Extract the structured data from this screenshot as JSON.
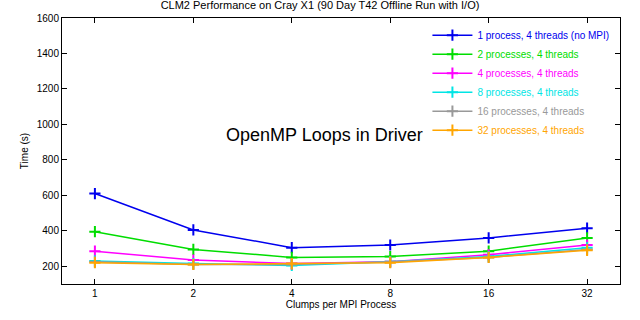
{
  "chart_data": {
    "type": "line",
    "title": "CLM2 Performance on Cray X1 (90 Day T42 Offline Run with I/O)",
    "x_label": "Clumps per MPI Process",
    "y_label": "Time (s)",
    "annotation": "OpenMP Loops in Driver",
    "categories": [
      "1",
      "2",
      "4",
      "8",
      "16",
      "32"
    ],
    "series": [
      {
        "name": "1 process, 4 threads (no MPI)",
        "color": "#0000ee",
        "values": [
          610,
          405,
          305,
          320,
          360,
          415
        ]
      },
      {
        "name": "2 processes, 4 threads",
        "color": "#00dd00",
        "values": [
          395,
          295,
          250,
          255,
          285,
          360
        ]
      },
      {
        "name": "4 processes, 4 threads",
        "color": "#ff00ff",
        "values": [
          285,
          235,
          215,
          225,
          265,
          320
        ]
      },
      {
        "name": "8 processes, 4 threads",
        "color": "#00e5e5",
        "values": [
          230,
          215,
          205,
          225,
          255,
          305
        ]
      },
      {
        "name": "16 processes, 4 threads",
        "color": "#999999",
        "values": [
          225,
          210,
          210,
          225,
          250,
          295
        ]
      },
      {
        "name": "32 processes, 4 threads",
        "color": "#ffa500",
        "values": [
          220,
          210,
          215,
          220,
          250,
          290
        ]
      }
    ],
    "ylim": [
      100,
      1600
    ],
    "yticks": [
      200,
      400,
      600,
      800,
      1000,
      1200,
      1400,
      1600
    ],
    "grid": false,
    "legend": "upper right",
    "marker": "cross",
    "line_style": "solid"
  }
}
